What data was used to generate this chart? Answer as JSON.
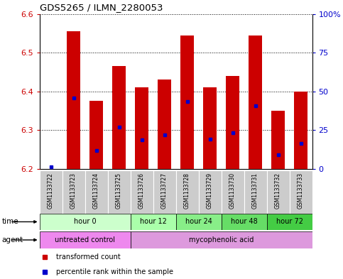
{
  "title": "GDS5265 / ILMN_2280053",
  "samples": [
    "GSM1133722",
    "GSM1133723",
    "GSM1133724",
    "GSM1133725",
    "GSM1133726",
    "GSM1133727",
    "GSM1133728",
    "GSM1133729",
    "GSM1133730",
    "GSM1133731",
    "GSM1133732",
    "GSM1133733"
  ],
  "bar_bottom": 6.2,
  "bar_tops": [
    6.2,
    6.555,
    6.375,
    6.465,
    6.41,
    6.43,
    6.545,
    6.41,
    6.44,
    6.545,
    6.35,
    6.4
  ],
  "blue_dot_y": [
    6.205,
    6.383,
    6.247,
    6.307,
    6.275,
    6.287,
    6.373,
    6.277,
    6.293,
    6.363,
    6.237,
    6.265
  ],
  "ylim": [
    6.2,
    6.6
  ],
  "yticks_left": [
    6.2,
    6.3,
    6.4,
    6.5,
    6.6
  ],
  "yticks_right": [
    0,
    25,
    50,
    75,
    100
  ],
  "bar_color": "#cc0000",
  "dot_color": "#0000cc",
  "time_groups": [
    {
      "label": "hour 0",
      "start": 0,
      "end": 4,
      "color": "#ccffcc"
    },
    {
      "label": "hour 12",
      "start": 4,
      "end": 6,
      "color": "#aaffaa"
    },
    {
      "label": "hour 24",
      "start": 6,
      "end": 8,
      "color": "#88ee88"
    },
    {
      "label": "hour 48",
      "start": 8,
      "end": 10,
      "color": "#66dd66"
    },
    {
      "label": "hour 72",
      "start": 10,
      "end": 12,
      "color": "#44cc44"
    }
  ],
  "agent_groups": [
    {
      "label": "untreated control",
      "start": 0,
      "end": 4,
      "color": "#ee88ee"
    },
    {
      "label": "mycophenolic acid",
      "start": 4,
      "end": 12,
      "color": "#dd99dd"
    }
  ],
  "sample_bg": "#cccccc",
  "background_color": "#ffffff"
}
